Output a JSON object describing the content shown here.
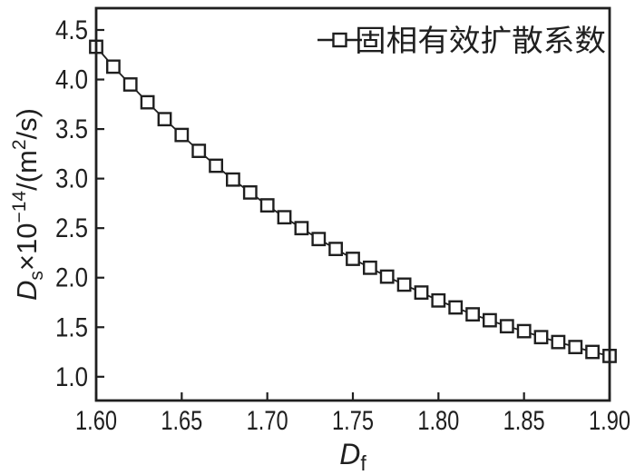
{
  "figure": {
    "background": "#ffffff",
    "ink": "#1f1f1f"
  },
  "legend": {
    "label": "固相有效扩散系数",
    "marker": "open-square-on-line",
    "position": "top-right-inside"
  },
  "axes": {
    "x": {
      "tick_labels": [
        "1.60",
        "1.65",
        "1.70",
        "1.75",
        "1.80",
        "1.85",
        "1.90"
      ],
      "label_segments": [
        {
          "t": "D",
          "style": "italic"
        },
        {
          "t": "f",
          "pos": "sub"
        }
      ]
    },
    "y": {
      "tick_labels": [
        "1.0",
        "1.5",
        "2.0",
        "2.5",
        "3.0",
        "3.5",
        "4.0",
        "4.5"
      ],
      "label_segments": [
        {
          "t": "D",
          "style": "italic"
        },
        {
          "t": "s",
          "pos": "sub"
        },
        {
          "t": "×10"
        },
        {
          "t": "−14",
          "pos": "sup"
        },
        {
          "t": "/(m"
        },
        {
          "t": "2",
          "pos": "sup"
        },
        {
          "t": "/s)"
        }
      ]
    }
  },
  "chart_data": {
    "type": "scatter",
    "marker": "open-square",
    "line_between_markers": true,
    "title": "",
    "xlabel": "D_f",
    "ylabel": "D_s×10^−14/(m^2/s)",
    "xlim": [
      1.6,
      1.9
    ],
    "ylim": [
      0.76,
      4.72
    ],
    "x_ticks": [
      1.6,
      1.65,
      1.7,
      1.75,
      1.8,
      1.85,
      1.9
    ],
    "y_ticks": [
      1.0,
      1.5,
      2.0,
      2.5,
      3.0,
      3.5,
      4.0,
      4.5
    ],
    "grid": false,
    "legend_position": "top-right-inside",
    "series": [
      {
        "name": "固相有效扩散系数",
        "x": [
          1.6,
          1.61,
          1.62,
          1.63,
          1.64,
          1.65,
          1.66,
          1.67,
          1.68,
          1.69,
          1.7,
          1.71,
          1.72,
          1.73,
          1.74,
          1.75,
          1.76,
          1.77,
          1.78,
          1.79,
          1.8,
          1.81,
          1.82,
          1.83,
          1.84,
          1.85,
          1.86,
          1.87,
          1.88,
          1.89,
          1.9
        ],
        "y": [
          4.33,
          4.13,
          3.95,
          3.77,
          3.6,
          3.44,
          3.28,
          3.13,
          2.99,
          2.86,
          2.73,
          2.61,
          2.5,
          2.39,
          2.29,
          2.19,
          2.1,
          2.01,
          1.93,
          1.85,
          1.77,
          1.7,
          1.63,
          1.57,
          1.51,
          1.46,
          1.4,
          1.35,
          1.3,
          1.25,
          1.21
        ]
      }
    ]
  }
}
